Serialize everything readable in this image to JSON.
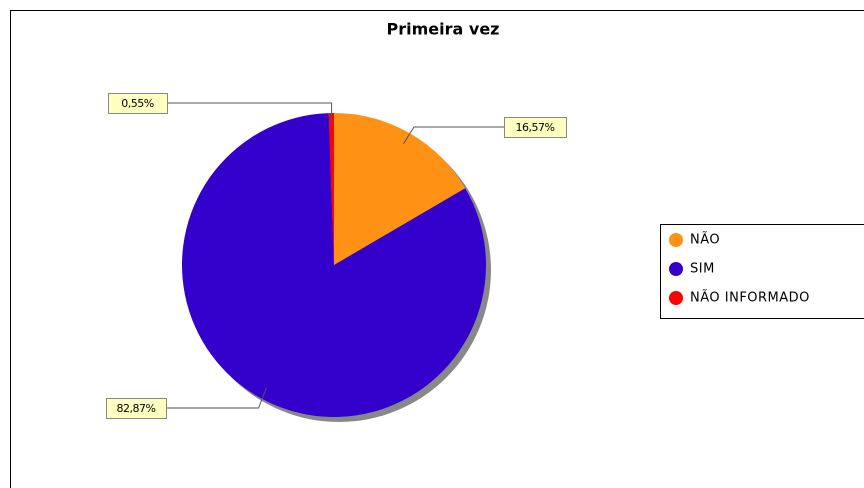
{
  "chart_data": {
    "type": "pie",
    "title": "Primeira vez",
    "categories": [
      "NÃO",
      "SIM",
      "NÃO INFORMADO"
    ],
    "values": [
      16.57,
      82.87,
      0.55
    ],
    "value_labels": [
      "16,57%",
      "82,87%",
      "0,55%"
    ],
    "colors": [
      "#ff9214",
      "#3300cc",
      "#ff0000"
    ]
  }
}
